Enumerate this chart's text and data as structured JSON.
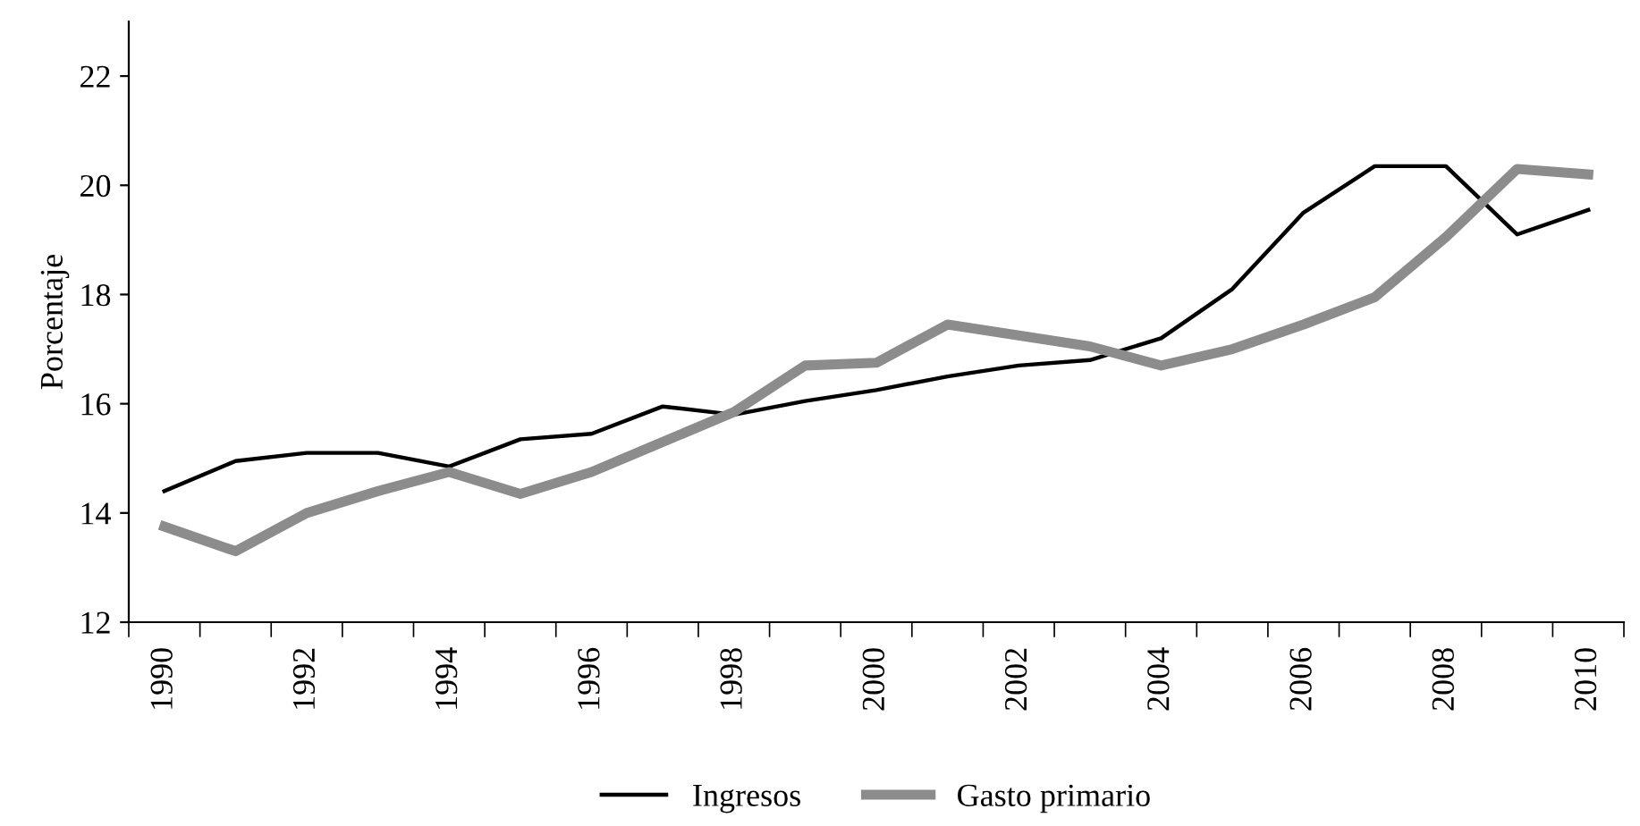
{
  "chart_data": {
    "type": "line",
    "ylabel": "Porcentaje",
    "categories": [
      "1990",
      null,
      "1992",
      null,
      "1994",
      null,
      "1996",
      null,
      "1998",
      null,
      "2000",
      null,
      "2002",
      null,
      "2004",
      null,
      "2006",
      null,
      "2008",
      null,
      "2010"
    ],
    "series": [
      {
        "name": "Ingresos",
        "color": "#000000",
        "values": [
          14.4,
          14.95,
          15.1,
          15.1,
          14.85,
          15.35,
          15.45,
          15.95,
          15.8,
          16.05,
          16.25,
          16.5,
          16.7,
          16.8,
          17.2,
          18.1,
          19.5,
          20.35,
          20.35,
          19.1,
          19.55
        ]
      },
      {
        "name": "Gasto primario",
        "color": "#8c8c8c",
        "values": [
          13.75,
          13.3,
          14.0,
          14.4,
          14.75,
          14.35,
          14.75,
          15.3,
          15.85,
          16.7,
          16.75,
          17.45,
          17.25,
          17.05,
          16.7,
          17.0,
          17.45,
          17.95,
          19.05,
          20.3,
          20.2
        ]
      }
    ],
    "ylim": [
      12,
      23
    ],
    "yticks": [
      12,
      14,
      16,
      18,
      20,
      22
    ],
    "grid": false,
    "legend": "bottom",
    "marker": "none",
    "line_style": "solid"
  }
}
